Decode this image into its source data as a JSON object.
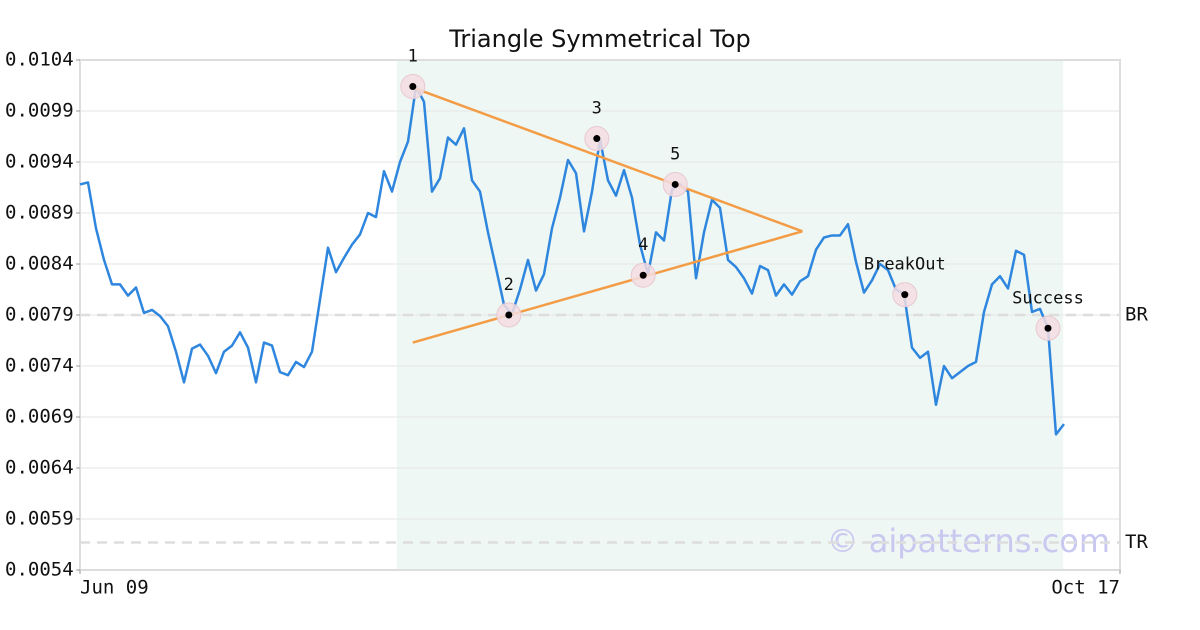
{
  "chart_data": {
    "type": "line",
    "title": "Triangle Symmetrical Top",
    "x": [
      0,
      1,
      2,
      3,
      4,
      5,
      6,
      7,
      8,
      9,
      10,
      11,
      12,
      13,
      14,
      15,
      16,
      17,
      18,
      19,
      20,
      21,
      22,
      23,
      24,
      25,
      26,
      27,
      28,
      29,
      30,
      31,
      32,
      33,
      34,
      35,
      36,
      37,
      38,
      39,
      40,
      41,
      42,
      43,
      44,
      45,
      46,
      47,
      48,
      49,
      50,
      51,
      52,
      53,
      54,
      55,
      56,
      57,
      58,
      59,
      60,
      61,
      62,
      63,
      64,
      65,
      66,
      67,
      68,
      69,
      70,
      71,
      72,
      73,
      74,
      75,
      76,
      77,
      78,
      79,
      80,
      81,
      82,
      83,
      84,
      85,
      86,
      87,
      88,
      89,
      90,
      91,
      92,
      93,
      94,
      95,
      96,
      97,
      98,
      99,
      100,
      101,
      102,
      103,
      104,
      105,
      106,
      107,
      108,
      109,
      110,
      111,
      112,
      113,
      114,
      115,
      116,
      117,
      118,
      119,
      120,
      121,
      122,
      123
    ],
    "values": [
      0.00918,
      0.0092,
      0.00875,
      0.00844,
      0.0082,
      0.0082,
      0.00809,
      0.00817,
      0.00792,
      0.00795,
      0.00789,
      0.00779,
      0.00754,
      0.00724,
      0.00757,
      0.00761,
      0.0075,
      0.00733,
      0.00754,
      0.0076,
      0.00773,
      0.00758,
      0.00724,
      0.00763,
      0.0076,
      0.00734,
      0.00731,
      0.00744,
      0.00739,
      0.00754,
      0.00805,
      0.00856,
      0.00832,
      0.00846,
      0.00859,
      0.00869,
      0.0089,
      0.00886,
      0.00931,
      0.00911,
      0.0094,
      0.0096,
      0.01014,
      0.00999,
      0.00911,
      0.00924,
      0.00964,
      0.00957,
      0.00973,
      0.00922,
      0.00911,
      0.00871,
      0.00836,
      0.008,
      0.00791,
      0.00815,
      0.00844,
      0.00814,
      0.0083,
      0.00875,
      0.00905,
      0.00942,
      0.00929,
      0.00872,
      0.00911,
      0.00962,
      0.00922,
      0.00907,
      0.00932,
      0.00905,
      0.00859,
      0.0083,
      0.00871,
      0.00863,
      0.00913,
      0.00918,
      0.00911,
      0.00826,
      0.00871,
      0.00903,
      0.00895,
      0.00844,
      0.00837,
      0.00826,
      0.00811,
      0.00838,
      0.00834,
      0.00809,
      0.0082,
      0.0081,
      0.00823,
      0.00828,
      0.00854,
      0.00866,
      0.00868,
      0.00868,
      0.00879,
      0.00842,
      0.00812,
      0.00824,
      0.0084,
      0.00834,
      0.00815,
      0.00811,
      0.00758,
      0.00748,
      0.00754,
      0.00702,
      0.0074,
      0.00728,
      0.00734,
      0.0074,
      0.00744,
      0.00793,
      0.0082,
      0.00828,
      0.00816,
      0.00853,
      0.00849,
      0.00793,
      0.00796,
      0.00777,
      0.00673,
      0.00683
    ],
    "color": "#2e86de",
    "xlim": [
      0,
      130
    ],
    "xticks": [
      {
        "value": 0,
        "label": "Jun 09"
      },
      {
        "value": 130,
        "label": "Oct 17"
      }
    ],
    "ylim": [
      0.0054,
      0.0104
    ],
    "yticks": [
      0.0054,
      0.0059,
      0.0064,
      0.0069,
      0.0074,
      0.0079,
      0.0084,
      0.0089,
      0.0094,
      0.0099,
      0.0104
    ],
    "grid": true,
    "shade": [
      39.6,
      122.9
    ],
    "trendlines": [
      {
        "x": [
          41.6,
          90.3
        ],
        "y": [
          0.01013,
          0.00872
        ],
        "color": "#f39c45"
      },
      {
        "x": [
          41.6,
          90.3
        ],
        "y": [
          0.00763,
          0.00872
        ],
        "color": "#f39c45"
      }
    ],
    "points": [
      {
        "label": "1",
        "x": 41.6,
        "y": 0.01014
      },
      {
        "label": "2",
        "x": 53.6,
        "y": 0.0079
      },
      {
        "label": "3",
        "x": 64.6,
        "y": 0.00963
      },
      {
        "label": "4",
        "x": 70.4,
        "y": 0.00829
      },
      {
        "label": "5",
        "x": 74.4,
        "y": 0.00918
      },
      {
        "label": "BreakOut",
        "x": 103.1,
        "y": 0.0081
      },
      {
        "label": "Success",
        "x": 121,
        "y": 0.00777
      }
    ],
    "levels": [
      {
        "label": "BR",
        "value": 0.0079
      },
      {
        "label": "TR",
        "value": 0.00567
      }
    ],
    "watermark": "© aipatterns.com"
  }
}
